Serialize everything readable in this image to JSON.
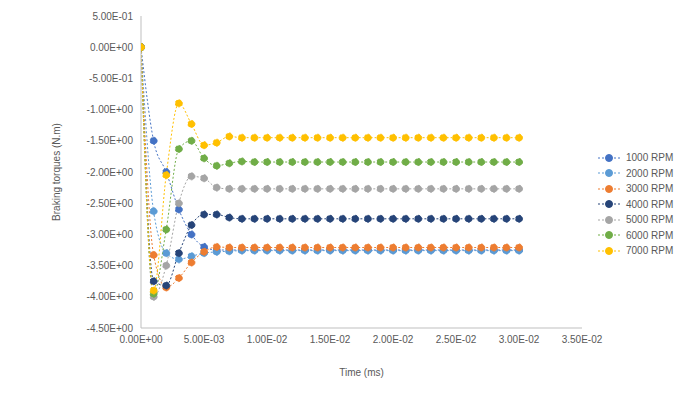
{
  "chart_data": {
    "type": "line",
    "x_label": "Time (ms)",
    "y_label": "Braking torques (N.m)",
    "x": [
      0,
      0.001,
      0.002,
      0.003,
      0.004,
      0.005,
      0.006,
      0.007,
      0.008,
      0.009,
      0.01,
      0.011,
      0.012,
      0.013,
      0.014,
      0.015,
      0.016,
      0.017,
      0.018,
      0.019,
      0.02,
      0.021,
      0.022,
      0.023,
      0.024,
      0.025,
      0.026,
      0.027,
      0.028,
      0.029,
      0.03
    ],
    "series": [
      {
        "name": "1000 RPM",
        "color": "#4472c4",
        "values": [
          0,
          -1.5,
          -2.0,
          -2.6,
          -3.0,
          -3.2,
          -3.25,
          -3.25,
          -3.25,
          -3.25,
          -3.25,
          -3.25,
          -3.25,
          -3.25,
          -3.25,
          -3.25,
          -3.25,
          -3.25,
          -3.25,
          -3.25,
          -3.25,
          -3.25,
          -3.25,
          -3.25,
          -3.25,
          -3.25,
          -3.25,
          -3.25,
          -3.25,
          -3.25,
          -3.25
        ]
      },
      {
        "name": "2000 RPM",
        "color": "#5b9bd5",
        "values": [
          0,
          -2.63,
          -3.3,
          -3.4,
          -3.35,
          -3.3,
          -3.28,
          -3.27,
          -3.26,
          -3.26,
          -3.26,
          -3.26,
          -3.26,
          -3.26,
          -3.26,
          -3.26,
          -3.26,
          -3.26,
          -3.26,
          -3.26,
          -3.26,
          -3.26,
          -3.26,
          -3.26,
          -3.26,
          -3.26,
          -3.26,
          -3.26,
          -3.26,
          -3.26,
          -3.26
        ]
      },
      {
        "name": "3000 RPM",
        "color": "#ed7d31",
        "values": [
          0,
          -3.33,
          -3.85,
          -3.7,
          -3.45,
          -3.28,
          -3.2,
          -3.21,
          -3.21,
          -3.21,
          -3.21,
          -3.21,
          -3.21,
          -3.21,
          -3.21,
          -3.21,
          -3.21,
          -3.21,
          -3.21,
          -3.21,
          -3.21,
          -3.21,
          -3.21,
          -3.21,
          -3.21,
          -3.21,
          -3.21,
          -3.21,
          -3.21,
          -3.21,
          -3.21
        ]
      },
      {
        "name": "4000 RPM",
        "color": "#264478",
        "values": [
          0,
          -3.75,
          -3.82,
          -3.3,
          -2.85,
          -2.68,
          -2.68,
          -2.73,
          -2.75,
          -2.75,
          -2.75,
          -2.75,
          -2.75,
          -2.75,
          -2.75,
          -2.75,
          -2.75,
          -2.75,
          -2.75,
          -2.75,
          -2.75,
          -2.75,
          -2.75,
          -2.75,
          -2.75,
          -2.75,
          -2.75,
          -2.75,
          -2.75,
          -2.75,
          -2.75
        ]
      },
      {
        "name": "5000 RPM",
        "color": "#a5a5a5",
        "values": [
          0,
          -4.0,
          -3.5,
          -2.5,
          -2.07,
          -2.1,
          -2.25,
          -2.27,
          -2.27,
          -2.27,
          -2.27,
          -2.27,
          -2.27,
          -2.27,
          -2.27,
          -2.27,
          -2.27,
          -2.27,
          -2.27,
          -2.27,
          -2.27,
          -2.27,
          -2.27,
          -2.27,
          -2.27,
          -2.27,
          -2.27,
          -2.27,
          -2.27,
          -2.27,
          -2.27
        ]
      },
      {
        "name": "6000 RPM",
        "color": "#70ad47",
        "values": [
          0,
          -3.95,
          -2.92,
          -1.63,
          -1.5,
          -1.78,
          -1.9,
          -1.86,
          -1.83,
          -1.84,
          -1.84,
          -1.84,
          -1.84,
          -1.84,
          -1.84,
          -1.84,
          -1.84,
          -1.84,
          -1.84,
          -1.84,
          -1.84,
          -1.84,
          -1.84,
          -1.84,
          -1.84,
          -1.84,
          -1.84,
          -1.84,
          -1.84,
          -1.84,
          -1.84
        ]
      },
      {
        "name": "7000 RPM",
        "color": "#ffc000",
        "values": [
          0,
          -3.9,
          -2.05,
          -0.9,
          -1.23,
          -1.57,
          -1.53,
          -1.43,
          -1.45,
          -1.45,
          -1.45,
          -1.45,
          -1.45,
          -1.45,
          -1.45,
          -1.45,
          -1.45,
          -1.45,
          -1.45,
          -1.45,
          -1.45,
          -1.45,
          -1.45,
          -1.45,
          -1.45,
          -1.45,
          -1.45,
          -1.45,
          -1.45,
          -1.45,
          -1.45
        ]
      }
    ],
    "xlim": [
      0,
      0.035
    ],
    "xticks": [
      {
        "value": 0,
        "label": "0.00E+00"
      },
      {
        "value": 0.005,
        "label": "5.00E-03"
      },
      {
        "value": 0.01,
        "label": "1.00E-02"
      },
      {
        "value": 0.015,
        "label": "1.50E-02"
      },
      {
        "value": 0.02,
        "label": "2.00E-02"
      },
      {
        "value": 0.025,
        "label": "2.50E-02"
      },
      {
        "value": 0.03,
        "label": "3.00E-02"
      },
      {
        "value": 0.035,
        "label": "3.50E-02"
      }
    ],
    "ylim": [
      -4.5,
      0.5
    ],
    "yticks": [
      {
        "value": 0.5,
        "label": "5.00E-01"
      },
      {
        "value": 0,
        "label": "0.00E+00"
      },
      {
        "value": -0.5,
        "label": "-5.00E-01"
      },
      {
        "value": -1,
        "label": "-1.00E+00"
      },
      {
        "value": -1.5,
        "label": "-1.50E+00"
      },
      {
        "value": -2,
        "label": "-2.00E+00"
      },
      {
        "value": -2.5,
        "label": "-2.50E+00"
      },
      {
        "value": -3,
        "label": "-3.00E+00"
      },
      {
        "value": -3.5,
        "label": "-3.50E+00"
      },
      {
        "value": -4,
        "label": "-4.00E+00"
      },
      {
        "value": -4.5,
        "label": "-4.50E+00"
      }
    ],
    "grid": false,
    "legend": "right",
    "marker": "circle"
  }
}
